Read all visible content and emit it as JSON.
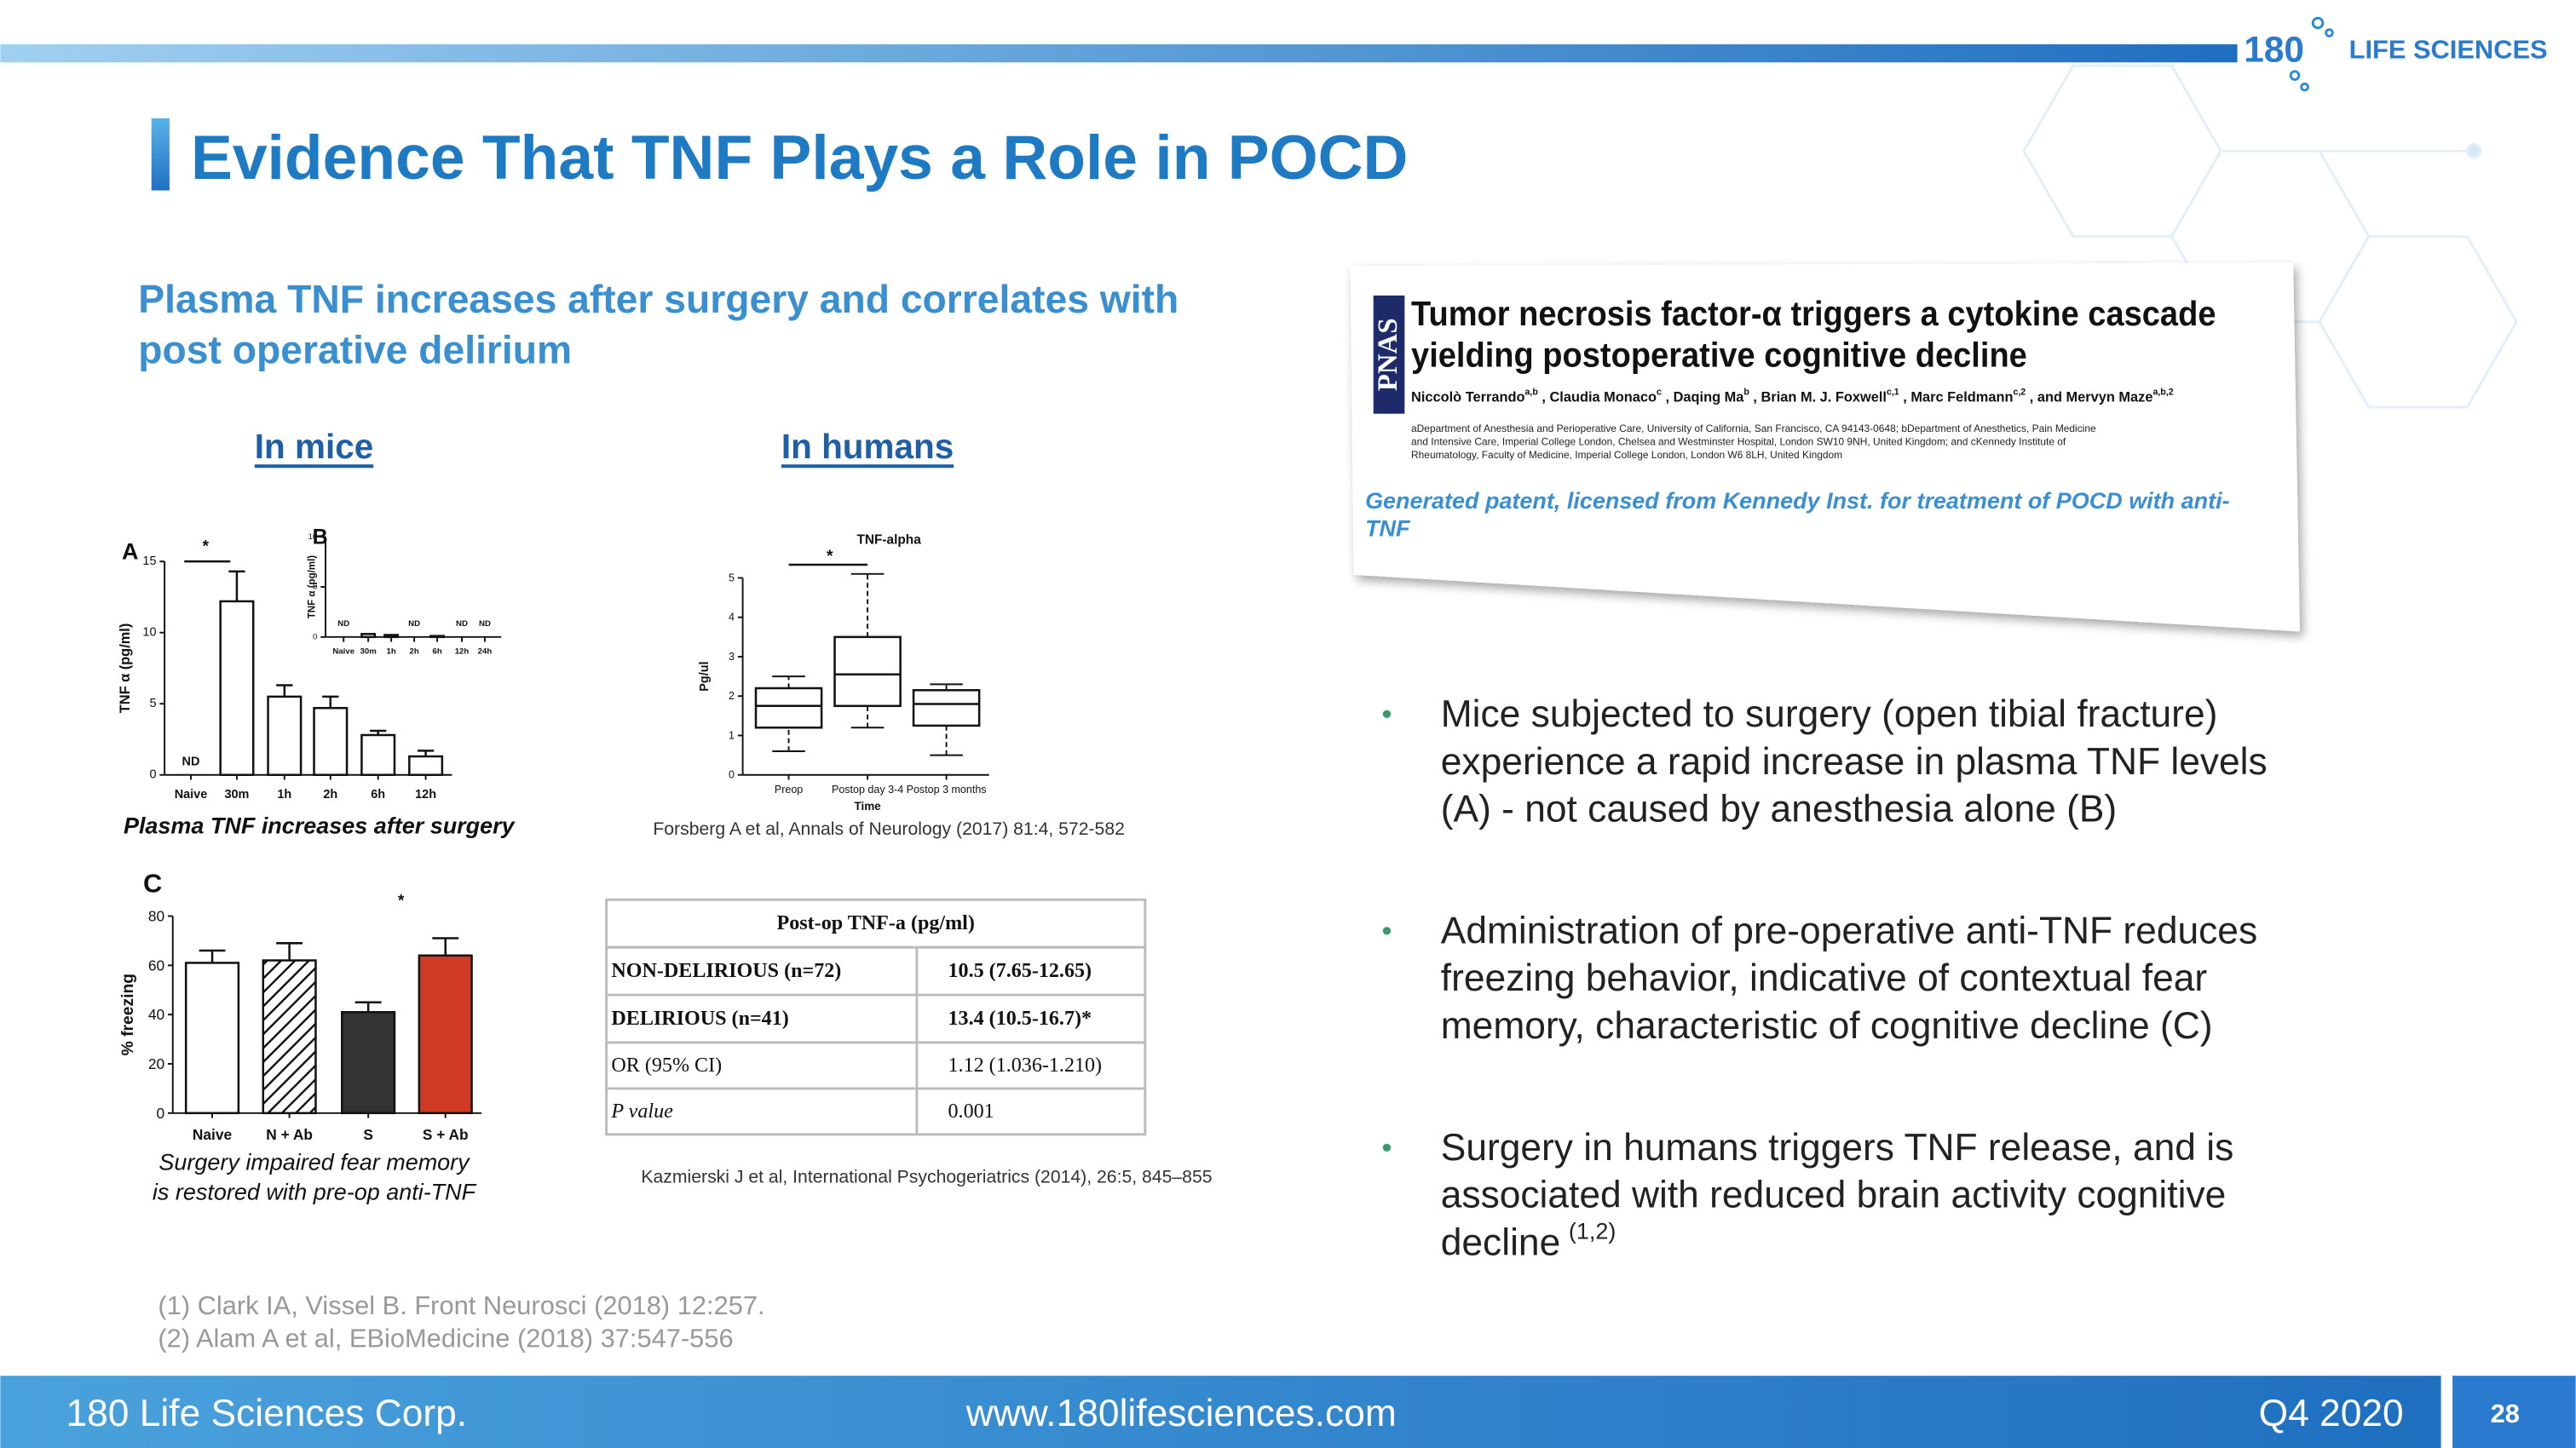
{
  "header": {
    "logo_number": "180",
    "logo_text": "LIFE SCIENCES",
    "title": "Evidence That TNF Plays a Role in POCD"
  },
  "subtitle_lines": [
    "Plasma TNF increases after surgery and correlates with",
    "post operative delirium"
  ],
  "section_labels": {
    "mice": "In mice",
    "humans": "In humans"
  },
  "chart_data": [
    {
      "type": "bar",
      "letter": "A",
      "ylabel": "TNF α (pg/ml)",
      "significance": "*",
      "categories": [
        "Naive",
        "30m",
        "1h",
        "2h",
        "6h",
        "12h"
      ],
      "values": [
        null,
        12.2,
        5.5,
        4.7,
        2.8,
        1.3
      ],
      "errors": [
        null,
        2.1,
        0.8,
        0.8,
        0.3,
        0.4
      ],
      "value_labels": [
        "ND",
        null,
        null,
        null,
        null,
        null
      ],
      "colors": [
        "#ffffff",
        "#ffffff",
        "#ffffff",
        "#ffffff",
        "#ffffff",
        "#ffffff"
      ],
      "ylim": [
        0,
        15
      ],
      "yticks": [
        0,
        5,
        10,
        15
      ]
    },
    {
      "type": "bar",
      "letter": "B",
      "ylabel": "TNF α (pg/ml)",
      "categories": [
        "Naive",
        "30m",
        "1h",
        "2h",
        "6h",
        "12h",
        "24h"
      ],
      "values": [
        null,
        0.3,
        0.2,
        null,
        0.1,
        null,
        null
      ],
      "errors": [
        null,
        null,
        null,
        null,
        null,
        null,
        null
      ],
      "value_labels": [
        "ND",
        null,
        null,
        "ND",
        null,
        "ND",
        "ND"
      ],
      "colors": [
        "#ffffff",
        "#ffffff",
        "#ffffff",
        "#ffffff",
        "#ffffff",
        "#ffffff",
        "#ffffff"
      ],
      "ylim": [
        0,
        10
      ],
      "yticks": [
        0,
        5,
        10
      ]
    },
    {
      "type": "bar",
      "letter": "C",
      "ylabel": "% freezing",
      "significance": "*",
      "categories": [
        "Naive",
        "N + Ab",
        "S",
        "S + Ab"
      ],
      "values": [
        61,
        62,
        41,
        64
      ],
      "errors": [
        5,
        7,
        4,
        7
      ],
      "colors": [
        "#ffffff",
        "#ffffff",
        "#333333",
        "#d03a25"
      ],
      "hatch": [
        false,
        true,
        false,
        false
      ],
      "ylim": [
        0,
        80
      ],
      "yticks": [
        0,
        20,
        40,
        60,
        80
      ]
    },
    {
      "type": "box",
      "title": "TNF-alpha",
      "xlabel": "Time",
      "ylabel": "Pg/ul",
      "significance": "*",
      "categories": [
        "Preop",
        "Postop day 3-4",
        "Postop 3 months"
      ],
      "boxes": [
        {
          "low": 0.6,
          "q1": 1.2,
          "median": 1.75,
          "q3": 2.2,
          "high": 2.5
        },
        {
          "low": 1.2,
          "q1": 1.75,
          "median": 2.55,
          "q3": 3.5,
          "high": 5.1
        },
        {
          "low": 0.5,
          "q1": 1.25,
          "median": 1.8,
          "q3": 2.15,
          "high": 2.3
        }
      ],
      "ylim": [
        0,
        5
      ],
      "yticks": [
        0,
        1,
        2,
        3,
        4,
        5
      ]
    }
  ],
  "captions": {
    "a_b": "Plasma TNF increases after surgery",
    "c_lines": [
      "Surgery impaired fear memory",
      "is restored with pre-op anti-TNF"
    ],
    "forsberg": "Forsberg A et al, Annals of Neurology (2017) 81:4, 572-582",
    "kazmierski": "Kazmierski J et al, International Psychogeriatrics (2014), 26:5, 845–855"
  },
  "table": {
    "header": "Post-op TNF-a (pg/ml)",
    "rows": [
      [
        "NON-DELIRIOUS (n=72)",
        "10.5 (7.65-12.65)"
      ],
      [
        "DELIRIOUS (n=41)",
        "13.4 (10.5-16.7)*"
      ],
      [
        "OR (95% CI)",
        "1.12 (1.036-1.210)"
      ],
      [
        "P value",
        "0.001"
      ]
    ]
  },
  "paper": {
    "journal": "PNAS",
    "title_lines": [
      "Tumor necrosis factor-α triggers a cytokine cascade",
      "yielding postoperative cognitive decline"
    ],
    "authors": [
      {
        "name": "Niccolò Terrando",
        "sup": "a,b"
      },
      {
        "name": ", Claudia Monaco",
        "sup": "c"
      },
      {
        "name": ", Daqing Ma",
        "sup": "b"
      },
      {
        "name": ", Brian M. J. Foxwell",
        "sup": "c,1"
      },
      {
        "name": ", Marc Feldmann",
        "sup": "c,2"
      },
      {
        "name": ", and Mervyn Maze",
        "sup": "a,b,2"
      }
    ],
    "affiliation_lines": [
      "aDepartment of Anesthesia and Perioperative Care, University of California, San Francisco, CA 94143-0648; bDepartment of Anesthetics, Pain Medicine",
      "and Intensive Care, Imperial College London, Chelsea and Westminster Hospital, London SW10 9NH, United Kingdom; and cKennedy Institute of",
      "Rheumatology, Faculty of Medicine, Imperial College London, London W6 8LH, United Kingdom"
    ],
    "note_lines": [
      "Generated patent, licensed from Kennedy Inst. for treatment of POCD with anti-",
      "TNF"
    ]
  },
  "bullets": [
    {
      "lines": [
        "Mice subjected to surgery (open tibial fracture)",
        "experience a rapid increase in plasma TNF levels",
        "(A) - not caused by anesthesia alone (B)"
      ]
    },
    {
      "lines": [
        "Administration of pre-operative anti-TNF reduces",
        "freezing behavior, indicative of contextual fear",
        "memory, characteristic of cognitive decline (C)"
      ]
    },
    {
      "lines": [
        "Surgery in humans triggers TNF release, and is",
        "associated with reduced brain activity cognitive",
        "decline"
      ],
      "superscript": "(1,2)"
    }
  ],
  "references": [
    "(1) Clark IA, Vissel B. Front Neurosci (2018) 12:257.",
    "(2) Alam A et al, EBioMedicine (2018) 37:547-556"
  ],
  "footer": {
    "company": "180 Life Sciences Corp.",
    "url": "www.180lifesciences.com",
    "date": "Q4 2020",
    "page": "28"
  }
}
